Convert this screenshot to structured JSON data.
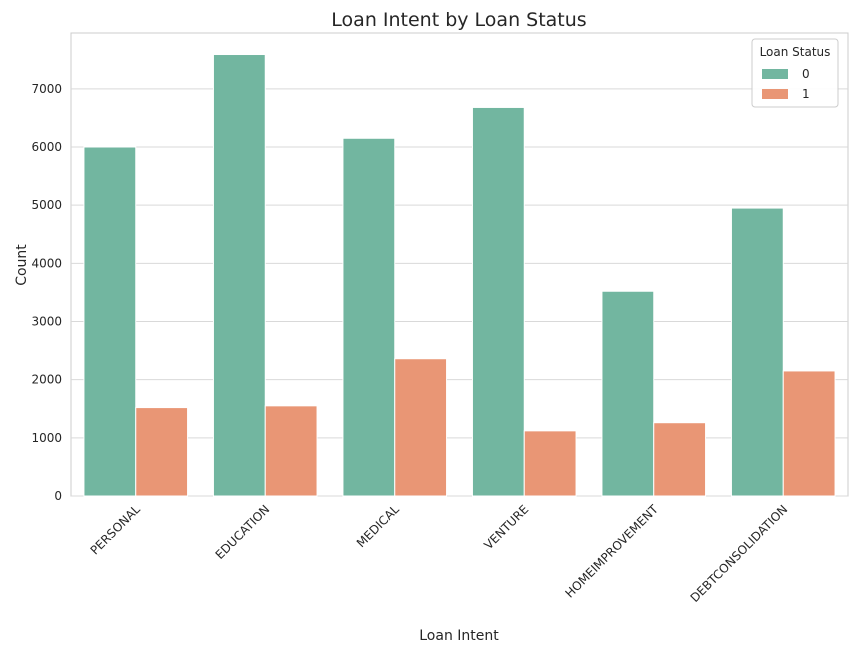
{
  "chart_data": {
    "type": "bar",
    "title": "Loan Intent by Loan Status",
    "xlabel": "Loan Intent",
    "ylabel": "Count",
    "categories": [
      "PERSONAL",
      "EDUCATION",
      "MEDICAL",
      "VENTURE",
      "HOMEIMPROVEMENT",
      "DEBTCONSOLIDATION"
    ],
    "series": [
      {
        "name": "0",
        "color": "#72b6a0",
        "values": [
          6000,
          7590,
          6150,
          6680,
          3520,
          4950
        ]
      },
      {
        "name": "1",
        "color": "#e99675",
        "values": [
          1520,
          1550,
          2360,
          1120,
          1260,
          2150
        ]
      }
    ],
    "ylim": [
      0,
      7960
    ],
    "yticks": [
      0,
      1000,
      2000,
      3000,
      4000,
      5000,
      6000,
      7000
    ],
    "grid": true,
    "legend": {
      "title": "Loan Status",
      "placement": "top-right"
    }
  }
}
